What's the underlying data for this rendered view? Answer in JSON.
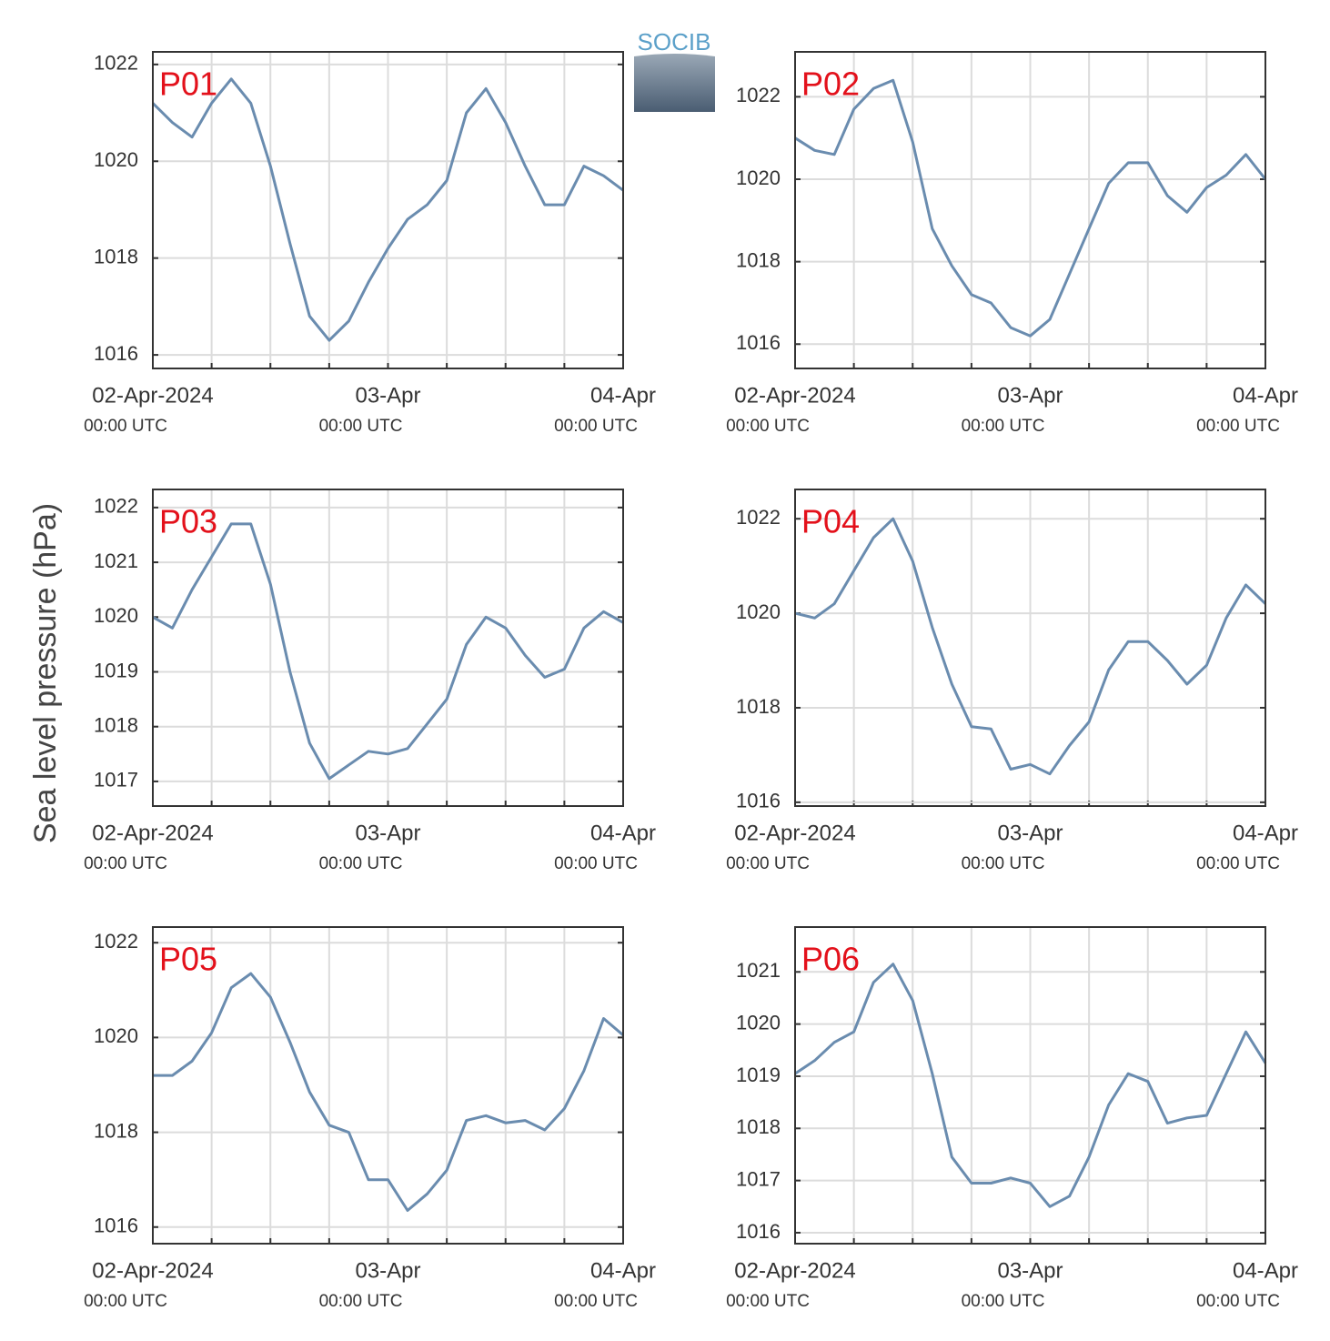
{
  "logo": "SOCIB",
  "ylabel": "Sea level pressure (hPa)",
  "chart_data": [
    {
      "type": "line",
      "label": "P01",
      "x": [
        "2024-04-02 00:00",
        "2024-04-02 02:00",
        "2024-04-02 04:00",
        "2024-04-02 06:00",
        "2024-04-02 08:00",
        "2024-04-02 10:00",
        "2024-04-02 12:00",
        "2024-04-02 14:00",
        "2024-04-02 16:00",
        "2024-04-02 18:00",
        "2024-04-02 20:00",
        "2024-04-02 22:00",
        "2024-04-03 00:00",
        "2024-04-03 02:00",
        "2024-04-03 04:00",
        "2024-04-03 06:00",
        "2024-04-03 08:00",
        "2024-04-03 10:00",
        "2024-04-03 12:00",
        "2024-04-03 14:00",
        "2024-04-03 16:00",
        "2024-04-03 18:00",
        "2024-04-03 20:00",
        "2024-04-03 22:00",
        "2024-04-04 00:00"
      ],
      "series": [
        {
          "color": "#6a8caf",
          "values": [
            1021.2,
            1020.8,
            1020.5,
            1021.2,
            1021.7,
            1021.2,
            1019.9,
            1018.3,
            1016.8,
            1016.3,
            1016.7,
            1017.5,
            1018.2,
            1018.8,
            1019.1,
            1019.6,
            1021.0,
            1021.5,
            1020.8,
            1019.9,
            1019.1,
            1019.1,
            1019.9,
            1019.7,
            1019.4
          ]
        }
      ],
      "ylim": [
        1015.72,
        1022.26
      ],
      "yticks": [
        1016,
        1018,
        1020,
        1022
      ],
      "xlim": [
        "2024-04-02 00:00",
        "2024-04-04 00:00"
      ],
      "xticks": [
        {
          "value": "2024-04-02 00:00",
          "label": "02-Apr-2024"
        },
        {
          "value": "2024-04-03 00:00",
          "label": "03-Apr"
        },
        {
          "value": "2024-04-04 00:00",
          "label": "04-Apr"
        }
      ],
      "x_grid": [
        "2024-04-02 00:00",
        "2024-04-02 06:00",
        "2024-04-02 12:00",
        "2024-04-02 18:00",
        "2024-04-03 00:00",
        "2024-04-03 06:00",
        "2024-04-03 12:00",
        "2024-04-03 18:00",
        "2024-04-04 00:00"
      ],
      "x_tick_note": "00:00 UTC",
      "grid": true
    },
    {
      "type": "line",
      "label": "P02",
      "x": [
        "2024-04-02 00:00",
        "2024-04-02 02:00",
        "2024-04-02 04:00",
        "2024-04-02 06:00",
        "2024-04-02 08:00",
        "2024-04-02 10:00",
        "2024-04-02 12:00",
        "2024-04-02 14:00",
        "2024-04-02 16:00",
        "2024-04-02 18:00",
        "2024-04-02 20:00",
        "2024-04-02 22:00",
        "2024-04-03 00:00",
        "2024-04-03 02:00",
        "2024-04-03 04:00",
        "2024-04-03 06:00",
        "2024-04-03 08:00",
        "2024-04-03 10:00",
        "2024-04-03 12:00",
        "2024-04-03 14:00",
        "2024-04-03 16:00",
        "2024-04-03 18:00",
        "2024-04-03 20:00",
        "2024-04-03 22:00",
        "2024-04-04 00:00"
      ],
      "series": [
        {
          "color": "#6a8caf",
          "values": [
            1021.0,
            1020.7,
            1020.6,
            1021.7,
            1022.2,
            1022.4,
            1020.9,
            1018.8,
            1017.9,
            1017.2,
            1017.0,
            1016.4,
            1016.2,
            1016.6,
            1017.7,
            1018.8,
            1019.9,
            1020.4,
            1020.4,
            1019.6,
            1019.2,
            1019.8,
            1020.1,
            1020.6,
            1020.0
          ]
        }
      ],
      "ylim": [
        1015.41,
        1023.09
      ],
      "yticks": [
        1016,
        1018,
        1020,
        1022
      ],
      "xlim": [
        "2024-04-02 00:00",
        "2024-04-04 00:00"
      ],
      "xticks": [
        {
          "value": "2024-04-02 00:00",
          "label": "02-Apr-2024"
        },
        {
          "value": "2024-04-03 00:00",
          "label": "03-Apr"
        },
        {
          "value": "2024-04-04 00:00",
          "label": "04-Apr"
        }
      ],
      "x_grid": [
        "2024-04-02 00:00",
        "2024-04-02 06:00",
        "2024-04-02 12:00",
        "2024-04-02 18:00",
        "2024-04-03 00:00",
        "2024-04-03 06:00",
        "2024-04-03 12:00",
        "2024-04-03 18:00",
        "2024-04-04 00:00"
      ],
      "x_tick_note": "00:00 UTC",
      "grid": true
    },
    {
      "type": "line",
      "label": "P03",
      "x": [
        "2024-04-02 00:00",
        "2024-04-02 02:00",
        "2024-04-02 04:00",
        "2024-04-02 06:00",
        "2024-04-02 08:00",
        "2024-04-02 10:00",
        "2024-04-02 12:00",
        "2024-04-02 14:00",
        "2024-04-02 16:00",
        "2024-04-02 18:00",
        "2024-04-02 20:00",
        "2024-04-02 22:00",
        "2024-04-03 00:00",
        "2024-04-03 02:00",
        "2024-04-03 04:00",
        "2024-04-03 06:00",
        "2024-04-03 08:00",
        "2024-04-03 10:00",
        "2024-04-03 12:00",
        "2024-04-03 14:00",
        "2024-04-03 16:00",
        "2024-04-03 18:00",
        "2024-04-03 20:00",
        "2024-04-03 22:00",
        "2024-04-04 00:00"
      ],
      "series": [
        {
          "color": "#6a8caf",
          "values": [
            1020.0,
            1019.8,
            1020.5,
            1021.1,
            1021.7,
            1021.7,
            1020.6,
            1019.0,
            1017.7,
            1017.05,
            1017.3,
            1017.55,
            1017.5,
            1017.6,
            1018.05,
            1018.5,
            1019.5,
            1020.0,
            1019.8,
            1019.3,
            1018.9,
            1019.05,
            1019.8,
            1020.1,
            1019.9
          ]
        }
      ],
      "ylim": [
        1016.55,
        1022.33
      ],
      "yticks": [
        1017,
        1018,
        1019,
        1020,
        1021,
        1022
      ],
      "xlim": [
        "2024-04-02 00:00",
        "2024-04-04 00:00"
      ],
      "xticks": [
        {
          "value": "2024-04-02 00:00",
          "label": "02-Apr-2024"
        },
        {
          "value": "2024-04-03 00:00",
          "label": "03-Apr"
        },
        {
          "value": "2024-04-04 00:00",
          "label": "04-Apr"
        }
      ],
      "x_grid": [
        "2024-04-02 00:00",
        "2024-04-02 06:00",
        "2024-04-02 12:00",
        "2024-04-02 18:00",
        "2024-04-03 00:00",
        "2024-04-03 06:00",
        "2024-04-03 12:00",
        "2024-04-03 18:00",
        "2024-04-04 00:00"
      ],
      "x_tick_note": "00:00 UTC",
      "grid": true
    },
    {
      "type": "line",
      "label": "P04",
      "x": [
        "2024-04-02 00:00",
        "2024-04-02 02:00",
        "2024-04-02 04:00",
        "2024-04-02 06:00",
        "2024-04-02 08:00",
        "2024-04-02 10:00",
        "2024-04-02 12:00",
        "2024-04-02 14:00",
        "2024-04-02 16:00",
        "2024-04-02 18:00",
        "2024-04-02 20:00",
        "2024-04-02 22:00",
        "2024-04-03 00:00",
        "2024-04-03 02:00",
        "2024-04-03 04:00",
        "2024-04-03 06:00",
        "2024-04-03 08:00",
        "2024-04-03 10:00",
        "2024-04-03 12:00",
        "2024-04-03 14:00",
        "2024-04-03 16:00",
        "2024-04-03 18:00",
        "2024-04-03 20:00",
        "2024-04-03 22:00",
        "2024-04-04 00:00"
      ],
      "series": [
        {
          "color": "#6a8caf",
          "values": [
            1020.0,
            1019.9,
            1020.2,
            1020.9,
            1021.6,
            1022.0,
            1021.1,
            1019.7,
            1018.5,
            1017.6,
            1017.55,
            1016.7,
            1016.8,
            1016.6,
            1017.2,
            1017.7,
            1018.8,
            1019.4,
            1019.4,
            1019.0,
            1018.5,
            1018.9,
            1019.9,
            1020.6,
            1020.2
          ]
        }
      ],
      "ylim": [
        1015.92,
        1022.62
      ],
      "yticks": [
        1016,
        1018,
        1020,
        1022
      ],
      "xlim": [
        "2024-04-02 00:00",
        "2024-04-04 00:00"
      ],
      "xticks": [
        {
          "value": "2024-04-02 00:00",
          "label": "02-Apr-2024"
        },
        {
          "value": "2024-04-03 00:00",
          "label": "03-Apr"
        },
        {
          "value": "2024-04-04 00:00",
          "label": "04-Apr"
        }
      ],
      "x_grid": [
        "2024-04-02 00:00",
        "2024-04-02 06:00",
        "2024-04-02 12:00",
        "2024-04-02 18:00",
        "2024-04-03 00:00",
        "2024-04-03 06:00",
        "2024-04-03 12:00",
        "2024-04-03 18:00",
        "2024-04-04 00:00"
      ],
      "x_tick_note": "00:00 UTC",
      "grid": true
    },
    {
      "type": "line",
      "label": "P05",
      "x": [
        "2024-04-02 00:00",
        "2024-04-02 02:00",
        "2024-04-02 04:00",
        "2024-04-02 06:00",
        "2024-04-02 08:00",
        "2024-04-02 10:00",
        "2024-04-02 12:00",
        "2024-04-02 14:00",
        "2024-04-02 16:00",
        "2024-04-02 18:00",
        "2024-04-02 20:00",
        "2024-04-02 22:00",
        "2024-04-03 00:00",
        "2024-04-03 02:00",
        "2024-04-03 04:00",
        "2024-04-03 06:00",
        "2024-04-03 08:00",
        "2024-04-03 10:00",
        "2024-04-03 12:00",
        "2024-04-03 14:00",
        "2024-04-03 16:00",
        "2024-04-03 18:00",
        "2024-04-03 20:00",
        "2024-04-03 22:00",
        "2024-04-04 00:00"
      ],
      "series": [
        {
          "color": "#6a8caf",
          "values": [
            1019.2,
            1019.2,
            1019.5,
            1020.1,
            1021.05,
            1021.35,
            1020.85,
            1019.9,
            1018.85,
            1018.15,
            1018.0,
            1017.0,
            1017.0,
            1016.35,
            1016.7,
            1017.2,
            1018.25,
            1018.35,
            1018.2,
            1018.25,
            1018.05,
            1018.5,
            1019.3,
            1020.4,
            1020.05
          ]
        }
      ],
      "ylim": [
        1015.65,
        1022.33
      ],
      "yticks": [
        1016,
        1018,
        1020,
        1022
      ],
      "xlim": [
        "2024-04-02 00:00",
        "2024-04-04 00:00"
      ],
      "xticks": [
        {
          "value": "2024-04-02 00:00",
          "label": "02-Apr-2024"
        },
        {
          "value": "2024-04-03 00:00",
          "label": "03-Apr"
        },
        {
          "value": "2024-04-04 00:00",
          "label": "04-Apr"
        }
      ],
      "x_grid": [
        "2024-04-02 00:00",
        "2024-04-02 06:00",
        "2024-04-02 12:00",
        "2024-04-02 18:00",
        "2024-04-03 00:00",
        "2024-04-03 06:00",
        "2024-04-03 12:00",
        "2024-04-03 18:00",
        "2024-04-04 00:00"
      ],
      "x_tick_note": "00:00 UTC",
      "grid": true
    },
    {
      "type": "line",
      "label": "P06",
      "x": [
        "2024-04-02 00:00",
        "2024-04-02 02:00",
        "2024-04-02 04:00",
        "2024-04-02 06:00",
        "2024-04-02 08:00",
        "2024-04-02 10:00",
        "2024-04-02 12:00",
        "2024-04-02 14:00",
        "2024-04-02 16:00",
        "2024-04-02 18:00",
        "2024-04-02 20:00",
        "2024-04-02 22:00",
        "2024-04-03 00:00",
        "2024-04-03 02:00",
        "2024-04-03 04:00",
        "2024-04-03 06:00",
        "2024-04-03 08:00",
        "2024-04-03 10:00",
        "2024-04-03 12:00",
        "2024-04-03 14:00",
        "2024-04-03 16:00",
        "2024-04-03 18:00",
        "2024-04-03 20:00",
        "2024-04-03 22:00",
        "2024-04-04 00:00"
      ],
      "series": [
        {
          "color": "#6a8caf",
          "values": [
            1019.05,
            1019.3,
            1019.65,
            1019.85,
            1020.8,
            1021.15,
            1020.45,
            1019.05,
            1017.45,
            1016.95,
            1016.95,
            1017.05,
            1016.95,
            1016.5,
            1016.7,
            1017.45,
            1018.45,
            1019.05,
            1018.9,
            1018.1,
            1018.2,
            1018.25,
            1019.05,
            1019.85,
            1019.25
          ]
        }
      ],
      "ylim": [
        1015.79,
        1021.86
      ],
      "yticks": [
        1016,
        1017,
        1018,
        1019,
        1020,
        1021
      ],
      "xlim": [
        "2024-04-02 00:00",
        "2024-04-04 00:00"
      ],
      "xticks": [
        {
          "value": "2024-04-02 00:00",
          "label": "02-Apr-2024"
        },
        {
          "value": "2024-04-03 00:00",
          "label": "03-Apr"
        },
        {
          "value": "2024-04-04 00:00",
          "label": "04-Apr"
        }
      ],
      "x_grid": [
        "2024-04-02 00:00",
        "2024-04-02 06:00",
        "2024-04-02 12:00",
        "2024-04-02 18:00",
        "2024-04-03 00:00",
        "2024-04-03 06:00",
        "2024-04-03 12:00",
        "2024-04-03 18:00",
        "2024-04-04 00:00"
      ],
      "x_tick_note": "00:00 UTC",
      "grid": true
    }
  ]
}
